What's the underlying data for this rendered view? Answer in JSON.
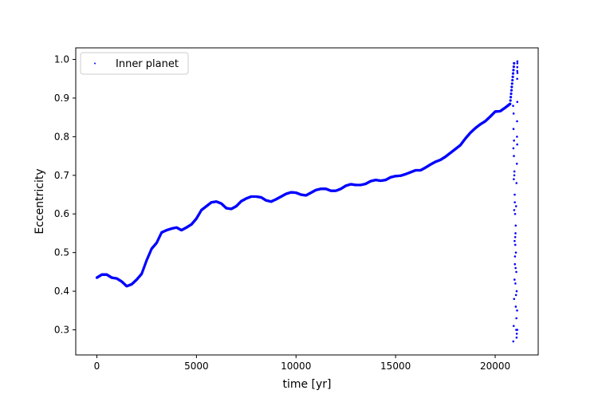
{
  "chart_data": {
    "type": "scatter",
    "title": "",
    "xlabel": "time [yr]",
    "ylabel": "Eccentricity",
    "xlim": [
      -1060,
      22160
    ],
    "ylim": [
      0.235,
      1.03
    ],
    "xticks": [
      0,
      5000,
      10000,
      15000,
      20000
    ],
    "xtick_labels": [
      "0",
      "5000",
      "10000",
      "15000",
      "20000"
    ],
    "yticks": [
      0.3,
      0.4,
      0.5,
      0.6,
      0.7,
      0.8,
      0.9,
      1.0
    ],
    "ytick_labels": [
      "0.3",
      "0.4",
      "0.5",
      "0.6",
      "0.7",
      "0.8",
      "0.9",
      "1.0"
    ],
    "grid": false,
    "legend_position": "upper-left",
    "series": [
      {
        "name": "Inner planet",
        "color": "#0000ff",
        "marker": "small-dot",
        "trend_x": [
          0,
          250,
          500,
          750,
          1000,
          1250,
          1500,
          1750,
          2000,
          2250,
          2500,
          2750,
          3000,
          3250,
          3500,
          3750,
          4000,
          4250,
          4500,
          4750,
          5000,
          5250,
          5500,
          5750,
          6000,
          6250,
          6500,
          6750,
          7000,
          7250,
          7500,
          7750,
          8000,
          8250,
          8500,
          8750,
          9000,
          9250,
          9500,
          9750,
          10000,
          10250,
          10500,
          10750,
          11000,
          11250,
          11500,
          11750,
          12000,
          12250,
          12500,
          12750,
          13000,
          13250,
          13500,
          13750,
          14000,
          14250,
          14500,
          14750,
          15000,
          15250,
          15500,
          15750,
          16000,
          16250,
          16500,
          16750,
          17000,
          17250,
          17500,
          17750,
          18000,
          18250,
          18500,
          18750,
          19000,
          19250,
          19500,
          19750,
          20000,
          20250,
          20500,
          20750,
          20950
        ],
        "trend_y": [
          0.435,
          0.443,
          0.443,
          0.435,
          0.433,
          0.425,
          0.413,
          0.418,
          0.43,
          0.445,
          0.48,
          0.51,
          0.525,
          0.552,
          0.558,
          0.562,
          0.565,
          0.558,
          0.565,
          0.573,
          0.588,
          0.61,
          0.62,
          0.63,
          0.632,
          0.627,
          0.615,
          0.613,
          0.62,
          0.633,
          0.64,
          0.645,
          0.645,
          0.643,
          0.635,
          0.632,
          0.638,
          0.645,
          0.652,
          0.656,
          0.655,
          0.65,
          0.648,
          0.655,
          0.662,
          0.665,
          0.665,
          0.66,
          0.66,
          0.665,
          0.673,
          0.677,
          0.675,
          0.675,
          0.678,
          0.685,
          0.688,
          0.686,
          0.688,
          0.695,
          0.698,
          0.699,
          0.703,
          0.708,
          0.713,
          0.713,
          0.72,
          0.728,
          0.735,
          0.74,
          0.748,
          0.758,
          0.768,
          0.778,
          0.795,
          0.81,
          0.822,
          0.832,
          0.84,
          0.852,
          0.865,
          0.866,
          0.875,
          0.885,
          0.99
        ],
        "scatter_x": [
          20900,
          20920,
          20940,
          20960,
          20980,
          21000,
          21020,
          21040,
          21060,
          21080,
          21100,
          21110,
          20910,
          20930,
          20950,
          20970,
          20990,
          21010,
          21030,
          21050,
          21070,
          21090,
          21105,
          20925,
          20945,
          20965,
          20985,
          21005,
          21025,
          21045,
          21065,
          21085,
          21100,
          20915,
          20935,
          20955,
          20975,
          20995,
          21015,
          21035,
          21055,
          21075,
          21095,
          21110,
          21105,
          21108,
          21110,
          21112,
          21115,
          21118
        ],
        "scatter_y": [
          0.88,
          0.82,
          0.75,
          0.7,
          0.65,
          0.6,
          0.55,
          0.5,
          0.45,
          0.4,
          0.35,
          0.3,
          0.27,
          0.31,
          0.38,
          0.43,
          0.47,
          0.52,
          0.57,
          0.62,
          0.68,
          0.73,
          0.78,
          0.86,
          0.79,
          0.71,
          0.63,
          0.54,
          0.46,
          0.39,
          0.33,
          0.29,
          0.84,
          0.77,
          0.69,
          0.61,
          0.53,
          0.49,
          0.42,
          0.36,
          0.3,
          0.28,
          0.8,
          0.89,
          0.95,
          0.97,
          0.98,
          0.99,
          0.995,
          0.965
        ]
      }
    ]
  }
}
